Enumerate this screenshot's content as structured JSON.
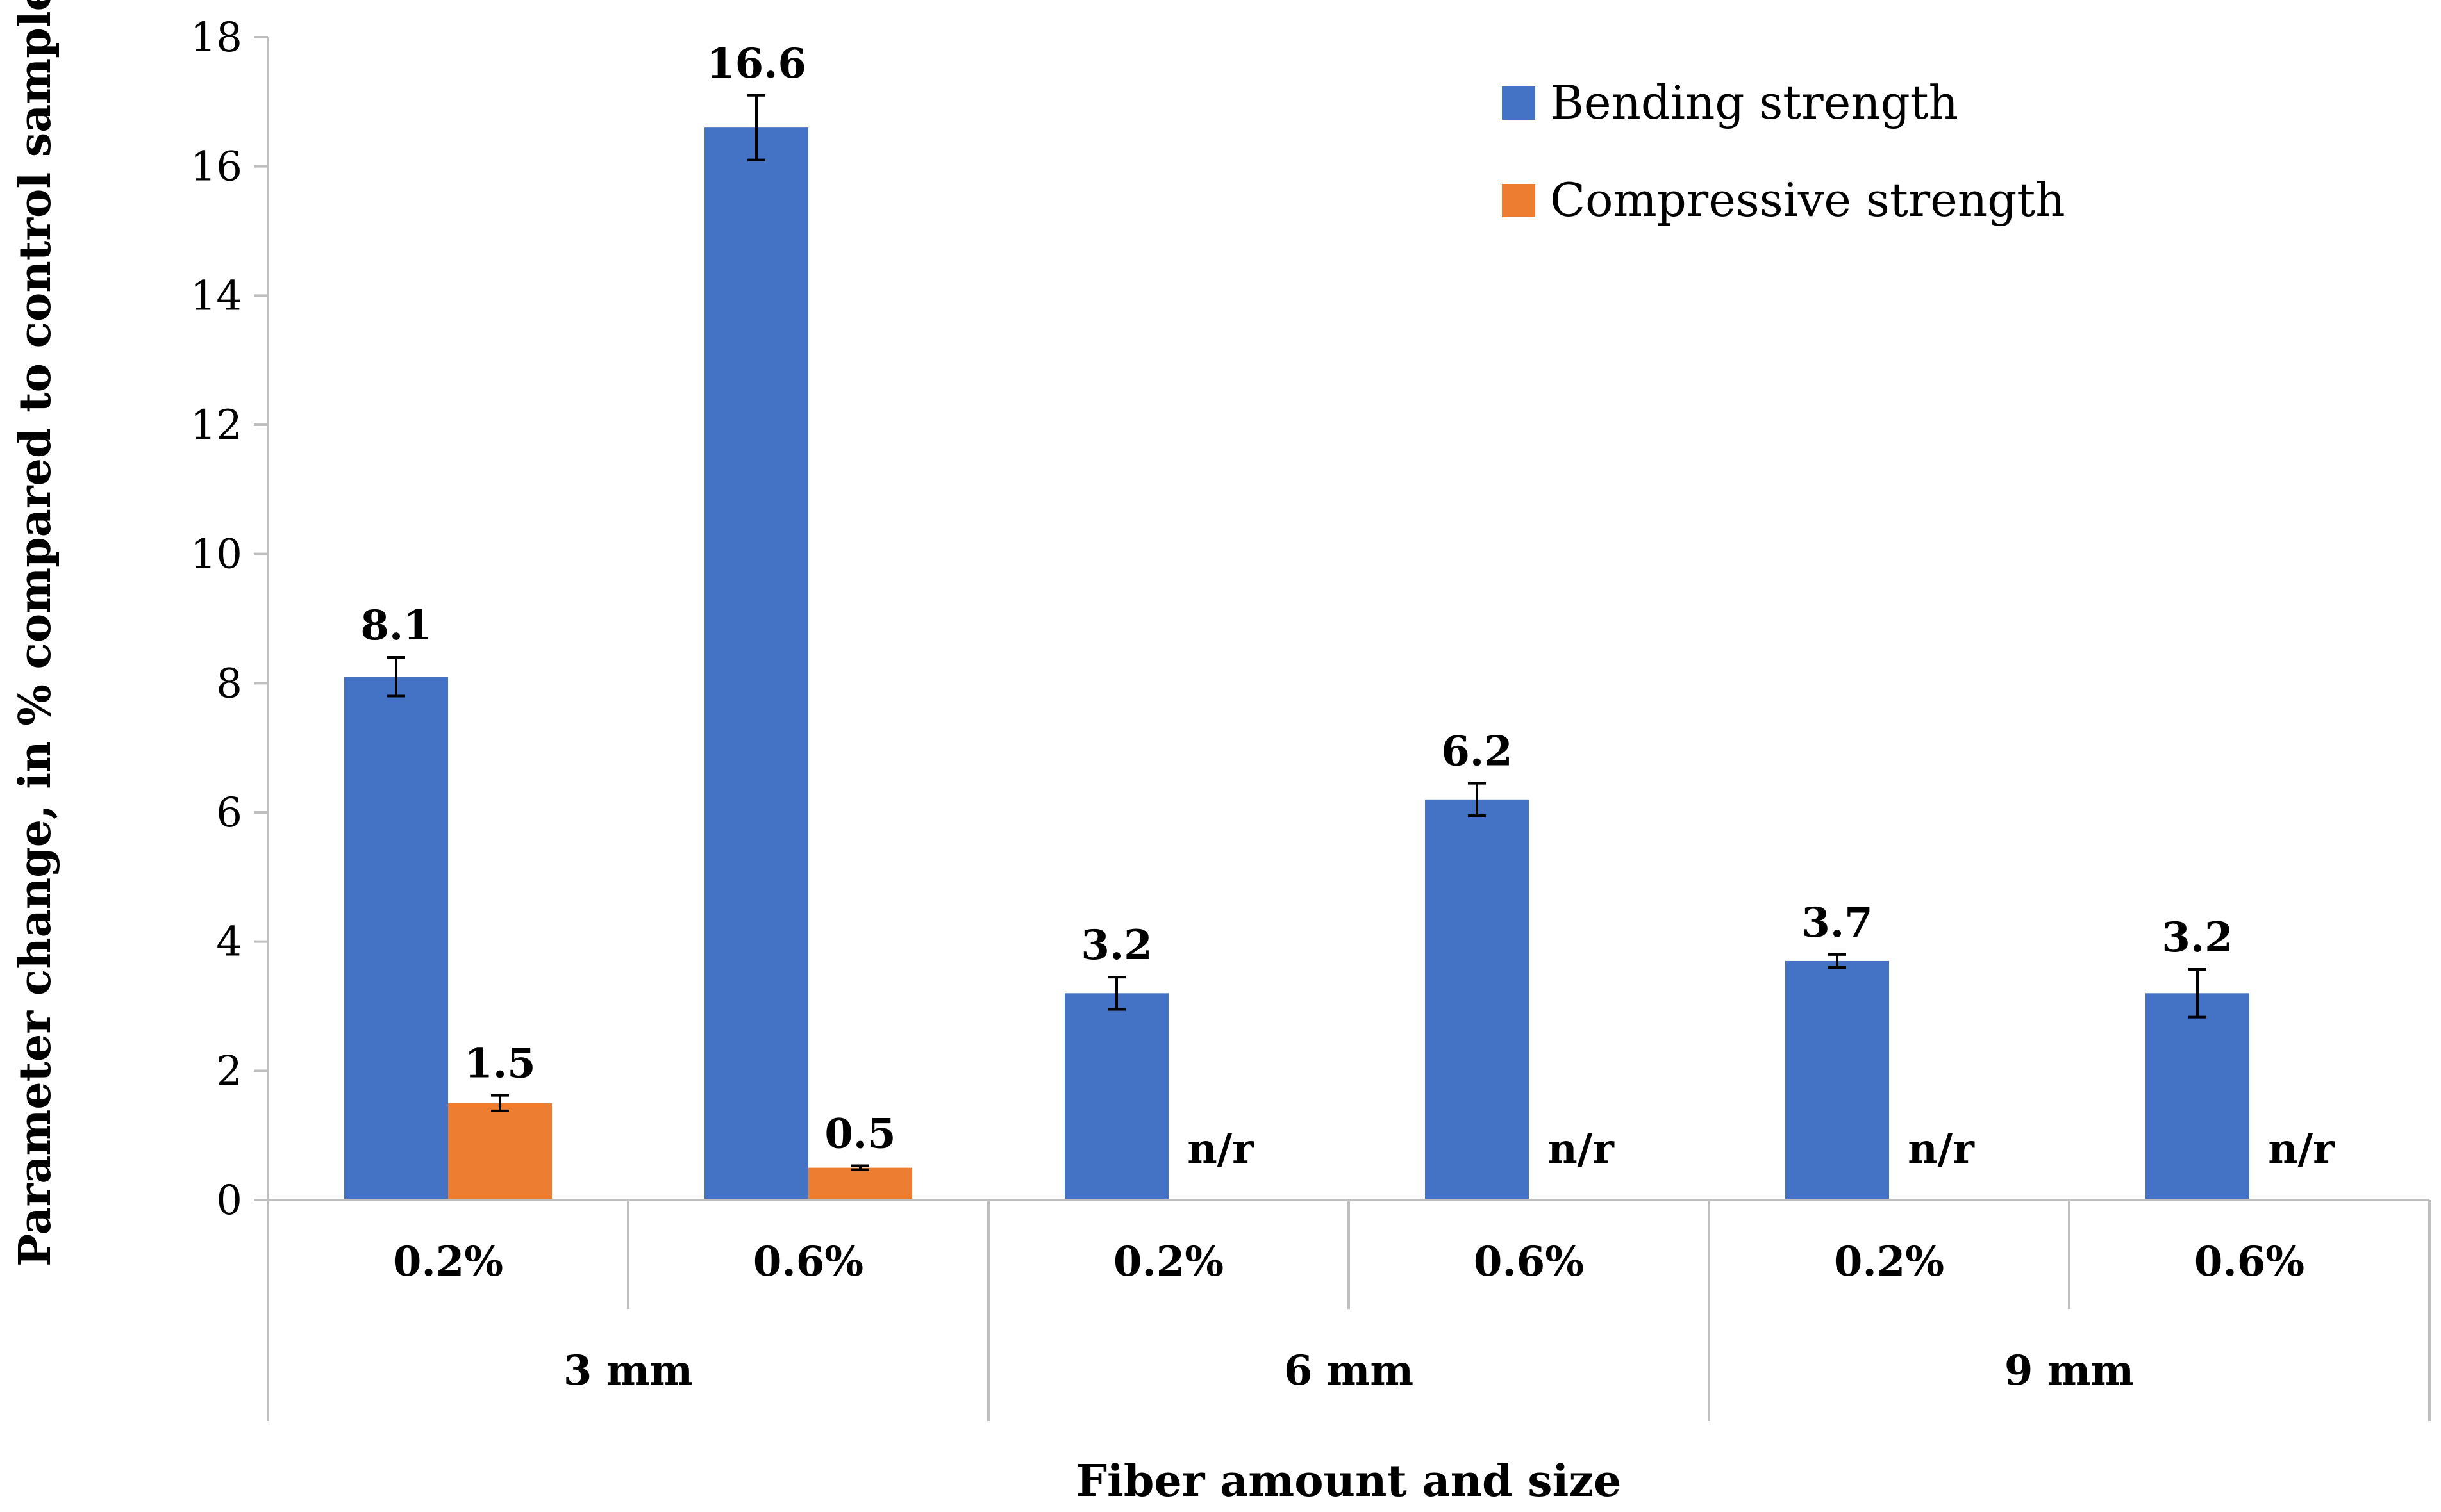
{
  "chart_data": {
    "type": "bar",
    "xlabel": "Fiber amount and size",
    "ylabel": "Parameter change, in % compared to control sample",
    "ylim": [
      0,
      18
    ],
    "y_ticks": [
      0,
      2,
      4,
      6,
      8,
      10,
      12,
      14,
      16,
      18
    ],
    "grid": false,
    "legend_position": "top-right",
    "categories": [
      "0.2%",
      "0.6%",
      "0.2%",
      "0.6%",
      "0.2%",
      "0.6%"
    ],
    "groups": [
      {
        "label": "3 mm",
        "span": [
          0,
          1
        ]
      },
      {
        "label": "6 mm",
        "span": [
          2,
          3
        ]
      },
      {
        "label": "9 mm",
        "span": [
          4,
          5
        ]
      }
    ],
    "series": [
      {
        "name": "Bending strength",
        "color": "#4472C4",
        "values": [
          8.1,
          16.6,
          3.2,
          6.2,
          3.7,
          3.2
        ],
        "labels": [
          "8.1",
          "16.6",
          "3.2",
          "6.2",
          "3.7",
          "3.2"
        ],
        "error": [
          0.3,
          0.5,
          0.25,
          0.25,
          0.1,
          0.37
        ]
      },
      {
        "name": "Compressive strength",
        "color": "#ED7D31",
        "values": [
          1.5,
          0.5,
          null,
          null,
          null,
          null
        ],
        "labels": [
          "1.5",
          "0.5",
          "n/r",
          "n/r",
          "n/r",
          "n/r"
        ],
        "error": [
          0.12,
          0.03,
          null,
          null,
          null,
          null
        ]
      }
    ]
  }
}
